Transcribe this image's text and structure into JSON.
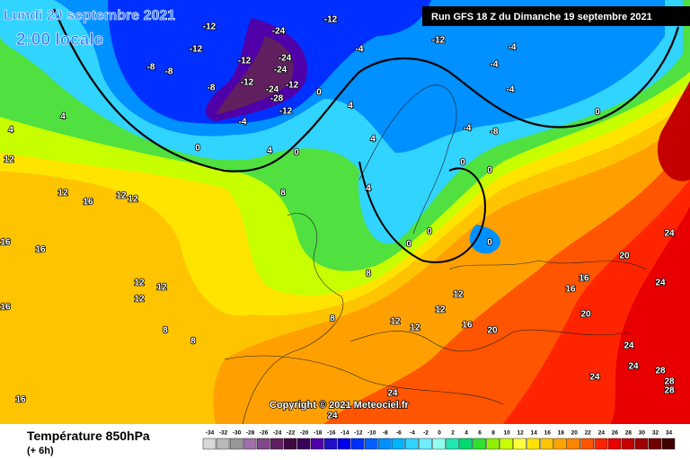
{
  "header": {
    "date": "Lundi 20 septembre 2021",
    "time": "2:00 locale",
    "run": "Run GFS 18 Z du Dimanche 19 septembre 2021"
  },
  "copyright": "Copyright © 2021 Meteociel.fr",
  "footer": {
    "title": "Température 850hPa",
    "lead": "(+ 6h)"
  },
  "map": {
    "contour_labels": [
      -12,
      -12,
      -24,
      -12,
      -24,
      -8,
      -12,
      -24,
      -8,
      -12,
      -24,
      -28,
      -12,
      -8,
      -4,
      -12,
      0,
      4,
      0,
      0,
      4,
      -4,
      -12,
      -4,
      -4,
      -4,
      0,
      -4,
      -8,
      4,
      0,
      0,
      0,
      0,
      0,
      4,
      4,
      12,
      12,
      16,
      12,
      12,
      8,
      4,
      12,
      12,
      12,
      8,
      8,
      16,
      16,
      16,
      16,
      12,
      12,
      12,
      12,
      16,
      20,
      16,
      16,
      20,
      20,
      24,
      24,
      24,
      24,
      24,
      28,
      28,
      28,
      24,
      24,
      8,
      8
    ]
  },
  "scale": {
    "ticks": [
      -34,
      -32,
      -30,
      -28,
      -26,
      -24,
      -22,
      -20,
      -18,
      -16,
      -14,
      -12,
      -10,
      -8,
      -6,
      -4,
      -2,
      0,
      2,
      4,
      6,
      8,
      10,
      12,
      14,
      16,
      18,
      20,
      22,
      24,
      26,
      28,
      30,
      32,
      34
    ],
    "colors": [
      "#d8d8d8",
      "#b8b8b8",
      "#989898",
      "#a070a8",
      "#804888",
      "#602060",
      "#400840",
      "#38005a",
      "#5000a8",
      "#2010c8",
      "#0000e8",
      "#0030ff",
      "#0060ff",
      "#0090ff",
      "#00b4ff",
      "#30d4ff",
      "#70ecff",
      "#90fff0",
      "#20e8b0",
      "#00d870",
      "#30e030",
      "#90f000",
      "#c8ff00",
      "#ffff40",
      "#ffe400",
      "#ffc400",
      "#ffa400",
      "#ff8400",
      "#ff5400",
      "#ff2400",
      "#e80000",
      "#c40000",
      "#a00000",
      "#700000",
      "#400000"
    ]
  }
}
